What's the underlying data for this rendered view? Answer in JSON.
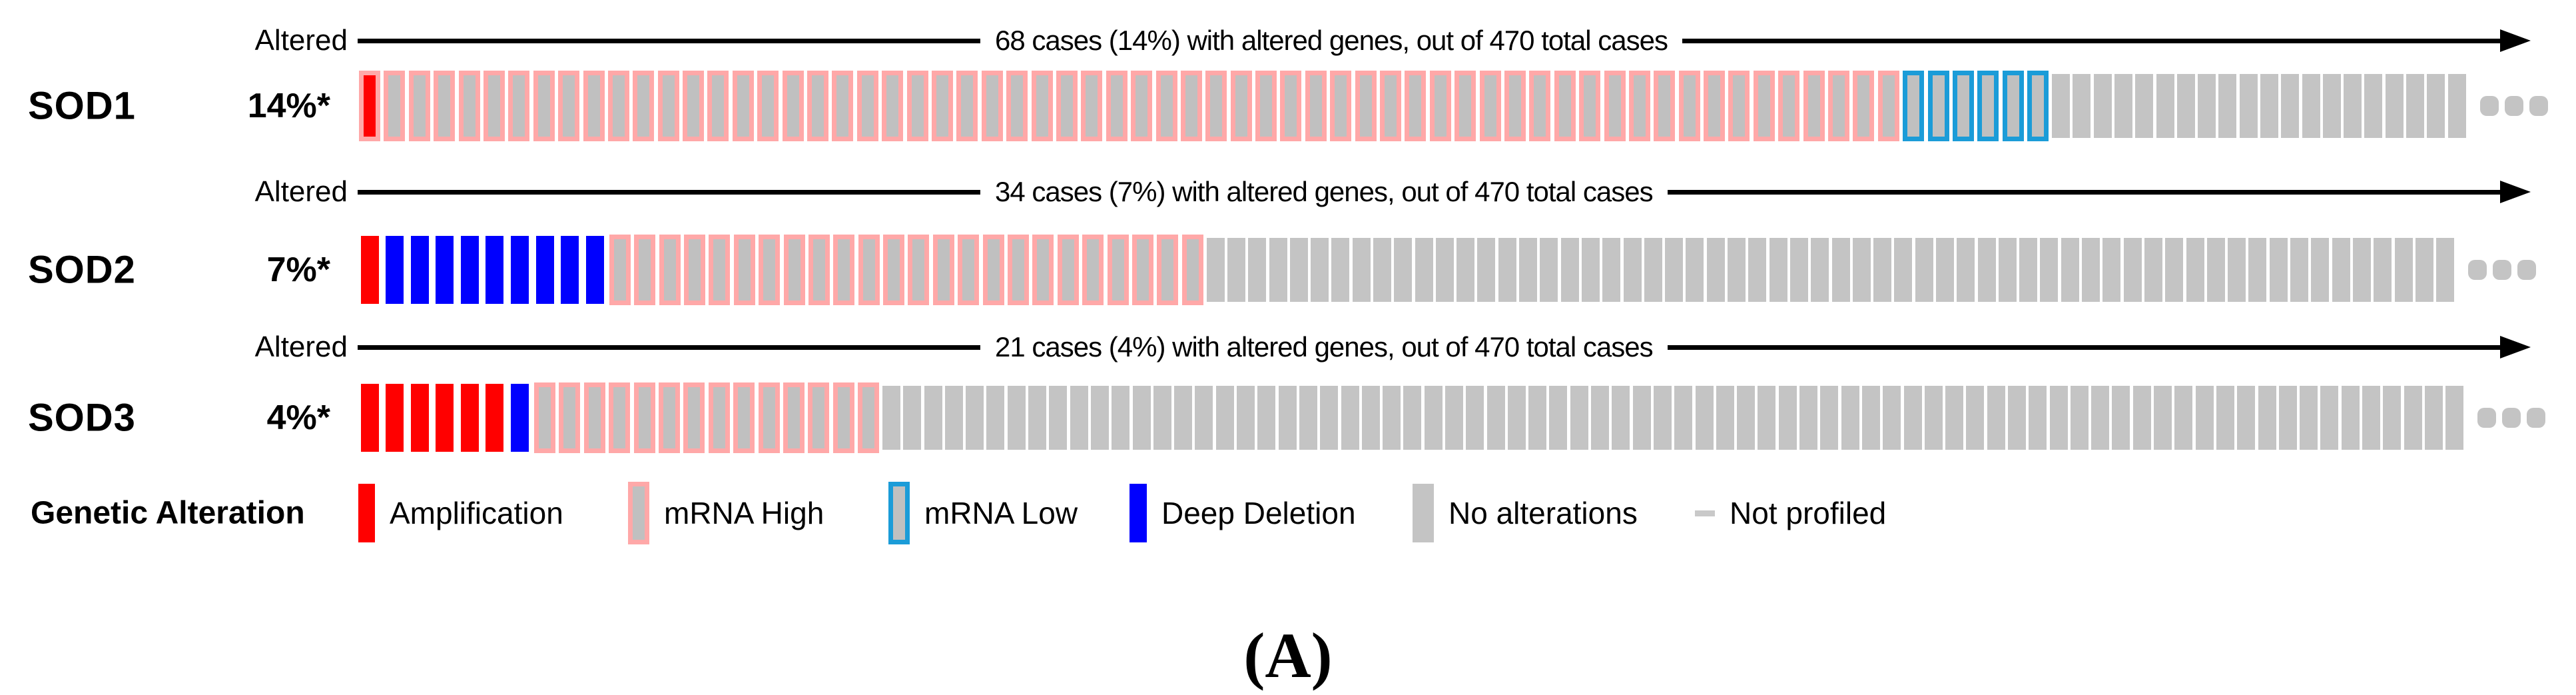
{
  "caption": {
    "label": "(A)"
  },
  "colors": {
    "amplification_red": "#ff0000",
    "deep_deletion_blue": "#0000fe",
    "mrna_high_pink": "#ffa8a8",
    "mrna_low_cyan": "#1b9cd8",
    "bar_inner_gray": "#c0c0c0",
    "no_alteration_gray": "#c4c4c4",
    "not_profiled_gray": "#c9c9c9",
    "arrow_black": "#000000"
  },
  "legend": {
    "title": "Genetic Alteration",
    "items": [
      {
        "label": "Amplification",
        "swatch": "amplification"
      },
      {
        "label": "mRNA High",
        "swatch": "mrna_high"
      },
      {
        "label": "mRNA Low",
        "swatch": "mrna_low"
      },
      {
        "label": "Deep Deletion",
        "swatch": "deep_deletion"
      },
      {
        "label": "No alterations",
        "swatch": "no_alteration"
      },
      {
        "label": "Not profiled",
        "swatch": "not_profiled"
      }
    ]
  },
  "tracks": [
    {
      "gene": "SOD1",
      "percent_label": "14%*",
      "altered_label": "Altered",
      "arrow_text": "68 cases (14%) with altered genes, out of 470 total cases",
      "segments": [
        {
          "type": "amplification_mrna_high",
          "count": 1
        },
        {
          "type": "mrna_high",
          "count": 61
        },
        {
          "type": "mrna_low",
          "count": 6
        },
        {
          "type": "no_alteration",
          "count": 20
        }
      ],
      "ellipsis": true
    },
    {
      "gene": "SOD2",
      "percent_label": "7%*",
      "altered_label": "Altered",
      "arrow_text": "34 cases (7%) with altered genes, out of 470 total cases",
      "segments": [
        {
          "type": "amplification",
          "count": 1
        },
        {
          "type": "deep_deletion",
          "count": 9
        },
        {
          "type": "mrna_high",
          "count": 24
        },
        {
          "type": "no_alteration",
          "count": 60
        }
      ],
      "ellipsis": true
    },
    {
      "gene": "SOD3",
      "percent_label": "4%*",
      "altered_label": "Altered",
      "arrow_text": "21 cases (4%) with altered genes, out of 470 total cases",
      "segments": [
        {
          "type": "amplification",
          "count": 6
        },
        {
          "type": "deep_deletion",
          "count": 1
        },
        {
          "type": "mrna_high",
          "count": 14
        },
        {
          "type": "no_alteration",
          "count": 76
        }
      ],
      "ellipsis": true
    }
  ],
  "chart_data": {
    "type": "heatmap",
    "title": "OncoPrint of SOD1, SOD2 and SOD3 genetic alterations",
    "total_cases": 470,
    "tracks": [
      {
        "gene": "SOD1",
        "altered_cases": 68,
        "altered_percent": 14,
        "alterations_shown": {
          "amplification_with_mrna_high": 1,
          "mrna_high": 61,
          "mrna_low": 6,
          "no_alteration_bars_shown": 20
        }
      },
      {
        "gene": "SOD2",
        "altered_cases": 34,
        "altered_percent": 7,
        "alterations_shown": {
          "amplification": 1,
          "deep_deletion": 9,
          "mrna_high": 24,
          "no_alteration_bars_shown": 60
        }
      },
      {
        "gene": "SOD3",
        "altered_cases": 21,
        "altered_percent": 4,
        "alterations_shown": {
          "amplification": 6,
          "deep_deletion": 1,
          "mrna_high": 14,
          "no_alteration_bars_shown": 76
        }
      }
    ],
    "legend_entries": [
      "Amplification",
      "mRNA High",
      "mRNA Low",
      "Deep Deletion",
      "No alterations",
      "Not profiled"
    ],
    "layout": {
      "legend_position": "bottom",
      "grid": false
    }
  }
}
